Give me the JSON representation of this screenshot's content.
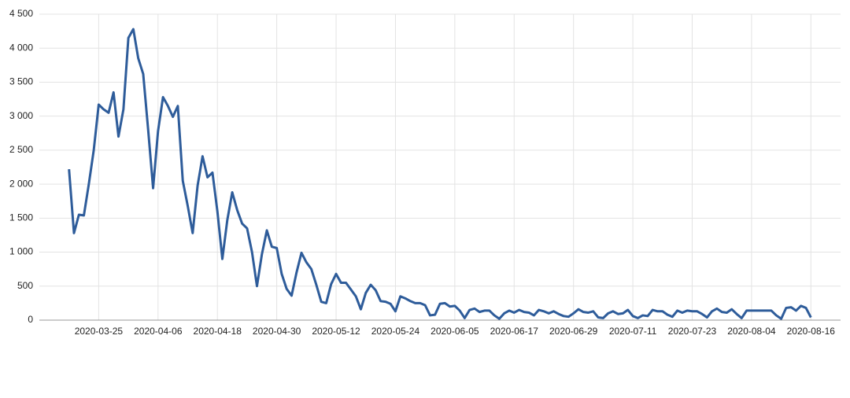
{
  "chart_data": {
    "type": "line",
    "x": [
      "2020-03-19",
      "2020-03-20",
      "2020-03-21",
      "2020-03-22",
      "2020-03-23",
      "2020-03-24",
      "2020-03-25",
      "2020-03-26",
      "2020-03-27",
      "2020-03-28",
      "2020-03-29",
      "2020-03-30",
      "2020-03-31",
      "2020-04-01",
      "2020-04-02",
      "2020-04-03",
      "2020-04-04",
      "2020-04-05",
      "2020-04-06",
      "2020-04-07",
      "2020-04-08",
      "2020-04-09",
      "2020-04-10",
      "2020-04-11",
      "2020-04-12",
      "2020-04-13",
      "2020-04-14",
      "2020-04-15",
      "2020-04-16",
      "2020-04-17",
      "2020-04-18",
      "2020-04-19",
      "2020-04-20",
      "2020-04-21",
      "2020-04-22",
      "2020-04-23",
      "2020-04-24",
      "2020-04-25",
      "2020-04-26",
      "2020-04-27",
      "2020-04-28",
      "2020-04-29",
      "2020-04-30",
      "2020-05-01",
      "2020-05-02",
      "2020-05-03",
      "2020-05-04",
      "2020-05-05",
      "2020-05-06",
      "2020-05-07",
      "2020-05-08",
      "2020-05-09",
      "2020-05-10",
      "2020-05-11",
      "2020-05-12",
      "2020-05-13",
      "2020-05-14",
      "2020-05-15",
      "2020-05-16",
      "2020-05-17",
      "2020-05-18",
      "2020-05-19",
      "2020-05-20",
      "2020-05-21",
      "2020-05-22",
      "2020-05-23",
      "2020-05-24",
      "2020-05-25",
      "2020-05-26",
      "2020-05-27",
      "2020-05-28",
      "2020-05-29",
      "2020-05-30",
      "2020-05-31",
      "2020-06-01",
      "2020-06-02",
      "2020-06-03",
      "2020-06-04",
      "2020-06-05",
      "2020-06-06",
      "2020-06-07",
      "2020-06-08",
      "2020-06-09",
      "2020-06-10",
      "2020-06-11",
      "2020-06-12",
      "2020-06-13",
      "2020-06-14",
      "2020-06-15",
      "2020-06-16",
      "2020-06-17",
      "2020-06-18",
      "2020-06-19",
      "2020-06-20",
      "2020-06-21",
      "2020-06-22",
      "2020-06-23",
      "2020-06-24",
      "2020-06-25",
      "2020-06-26",
      "2020-06-27",
      "2020-06-28",
      "2020-06-29",
      "2020-06-30",
      "2020-07-01",
      "2020-07-02",
      "2020-07-03",
      "2020-07-04",
      "2020-07-05",
      "2020-07-06",
      "2020-07-07",
      "2020-07-08",
      "2020-07-09",
      "2020-07-10",
      "2020-07-11",
      "2020-07-12",
      "2020-07-13",
      "2020-07-14",
      "2020-07-15",
      "2020-07-16",
      "2020-07-17",
      "2020-07-18",
      "2020-07-19",
      "2020-07-20",
      "2020-07-21",
      "2020-07-22",
      "2020-07-23",
      "2020-07-24",
      "2020-07-25",
      "2020-07-26",
      "2020-07-27",
      "2020-07-28",
      "2020-07-29",
      "2020-07-30",
      "2020-07-31",
      "2020-08-01",
      "2020-08-02",
      "2020-08-03",
      "2020-08-04",
      "2020-08-05",
      "2020-08-06",
      "2020-08-07",
      "2020-08-08",
      "2020-08-09",
      "2020-08-10",
      "2020-08-11",
      "2020-08-12",
      "2020-08-13",
      "2020-08-14",
      "2020-08-15",
      "2020-08-16"
    ],
    "series": [
      {
        "color": "#2e5c9a",
        "values": [
          2220,
          1280,
          1550,
          1540,
          2000,
          2500,
          3170,
          3100,
          3050,
          3350,
          2700,
          3100,
          4150,
          4280,
          3850,
          3620,
          2800,
          1940,
          2780,
          3280,
          3150,
          2990,
          3150,
          2050,
          1680,
          1280,
          1980,
          2410,
          2100,
          2170,
          1600,
          900,
          1470,
          1880,
          1620,
          1420,
          1350,
          1000,
          500,
          970,
          1320,
          1080,
          1060,
          680,
          460,
          360,
          700,
          990,
          850,
          750,
          520,
          270,
          250,
          530,
          680,
          550,
          550,
          450,
          350,
          160,
          400,
          520,
          440,
          280,
          270,
          240,
          130,
          350,
          320,
          280,
          250,
          250,
          220,
          70,
          80,
          240,
          250,
          200,
          210,
          140,
          30,
          150,
          170,
          120,
          140,
          140,
          70,
          20,
          100,
          140,
          110,
          150,
          120,
          110,
          70,
          150,
          130,
          100,
          130,
          90,
          60,
          50,
          100,
          160,
          120,
          110,
          130,
          40,
          30,
          100,
          130,
          90,
          100,
          150,
          60,
          30,
          70,
          60,
          150,
          130,
          130,
          80,
          50,
          140,
          110,
          140,
          130,
          130,
          90,
          40,
          130,
          170,
          120,
          110,
          160,
          90,
          30,
          140,
          140,
          140,
          140,
          140,
          140,
          70,
          20,
          180,
          190,
          140,
          210,
          180,
          40
        ]
      }
    ],
    "xlim": [
      "2020-03-13",
      "2020-08-22"
    ],
    "xticks": [
      "2020-03-25",
      "2020-04-06",
      "2020-04-18",
      "2020-04-30",
      "2020-05-12",
      "2020-05-24",
      "2020-06-05",
      "2020-06-17",
      "2020-06-29",
      "2020-07-11",
      "2020-07-23",
      "2020-08-04",
      "2020-08-16"
    ],
    "ylim": [
      0,
      4500
    ],
    "yticks": [
      0,
      500,
      {
        "value": 1000,
        "label": "1 000"
      },
      {
        "value": 1500,
        "label": "1 500"
      },
      {
        "value": 2000,
        "label": "2 000"
      },
      {
        "value": 2500,
        "label": "2 500"
      },
      {
        "value": 3000,
        "label": "3 000"
      },
      {
        "value": 3500,
        "label": "3 500"
      },
      {
        "value": 4000,
        "label": "4 000"
      },
      {
        "value": 4500,
        "label": "4 500"
      }
    ],
    "grid": true
  }
}
